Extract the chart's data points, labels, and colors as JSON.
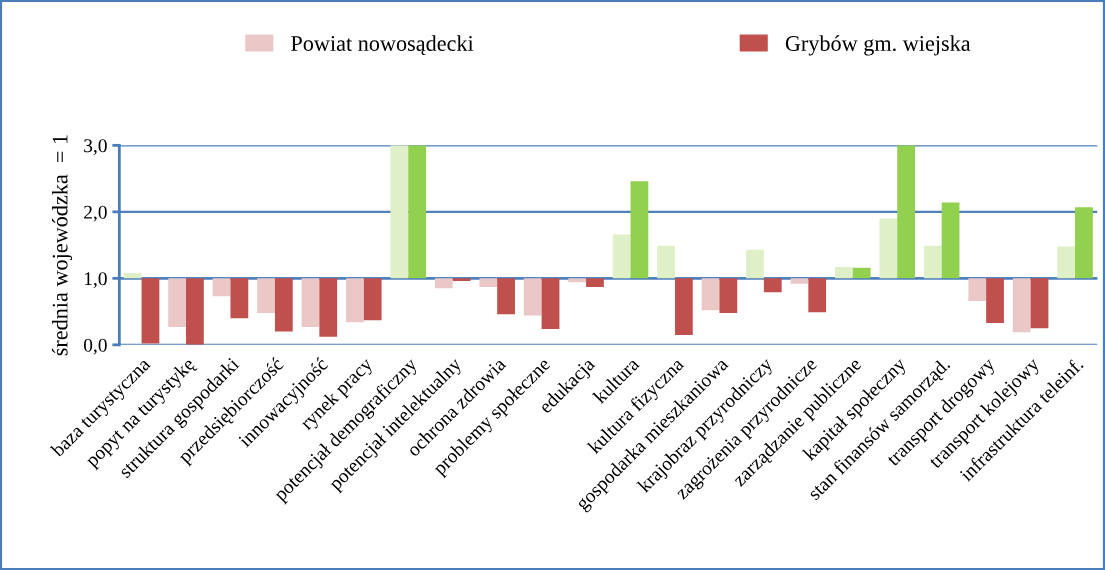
{
  "chart_data": {
    "type": "bar",
    "ylabel": "średnia wojewódzka  = 1",
    "categories": [
      "baza turystyczna",
      "popyt na turystykę",
      "struktura gospodarki",
      "przedsiębiorczość",
      "innowacyjność",
      "rynek pracy",
      "potencjał demograficzny",
      "potencjał intelektualny",
      "ochrona zdrowia",
      "problemy społeczne",
      "edukacja",
      "kultura",
      "kultura fizyczna",
      "gospodarka mieszkaniowa",
      "krajobraz przyrodniczy",
      "zagrożenia przyrodnicze",
      "zarządzanie publiczne",
      "kapitał społeczny",
      "stan finansów samorząd.",
      "transport drogowy",
      "transport kolejowy",
      "infrastruktura teleinf."
    ],
    "series": [
      {
        "base": [
          1,
          1,
          1,
          1,
          1,
          1,
          1,
          1,
          1,
          1,
          1,
          1,
          1,
          1,
          1,
          1,
          1,
          1,
          1,
          1,
          1,
          1
        ],
        "name": "Powiat nowosądecki",
        "color": "#ebc8c8",
        "colors": [
          "#dff0c8",
          "#ebc8c8",
          "#ebc8c8",
          "#ebc8c8",
          "#ebc8c8",
          "#ebc8c8",
          "#dff0c8",
          "#ebc8c8",
          "#ebc8c8",
          "#ebc8c8",
          "#ebc8c8",
          "#dff0c8",
          "#dff0c8",
          "#ebc8c8",
          "#dff0c8",
          "#ebc8c8",
          "#dff0c8",
          "#dff0c8",
          "#dff0c8",
          "#ebc8c8",
          "#ebc8c8",
          "#dff0c8"
        ],
        "values": [
          0.08,
          -0.73,
          -0.27,
          -0.52,
          -0.73,
          -0.66,
          2.0,
          -0.15,
          -0.13,
          -0.56,
          -0.06,
          0.66,
          0.49,
          -0.48,
          0.43,
          -0.08,
          0.17,
          0.9,
          0.49,
          -0.34,
          -0.81,
          0.48
        ]
      },
      {
        "base": [
          1,
          1,
          1,
          1,
          1,
          1,
          1,
          1,
          1,
          1,
          1,
          1,
          1,
          1,
          1,
          1,
          1,
          1,
          1,
          1,
          1,
          1
        ],
        "name": "Grybów gm. wiejska",
        "color": "#c0504d",
        "colors": [
          "#c0504d",
          "#c0504d",
          "#c0504d",
          "#c0504d",
          "#c0504d",
          "#c0504d",
          "#92d050",
          "#c0504d",
          "#c0504d",
          "#c0504d",
          "#c0504d",
          "#92d050",
          "#c0504d",
          "#c0504d",
          "#c0504d",
          "#c0504d",
          "#92d050",
          "#92d050",
          "#92d050",
          "#c0504d",
          "#c0504d",
          "#92d050"
        ],
        "values": [
          -0.98,
          -1.0,
          -0.6,
          -0.8,
          -0.88,
          -0.63,
          2.0,
          -0.04,
          -0.54,
          -0.76,
          -0.13,
          1.46,
          -0.85,
          -0.52,
          -0.21,
          -0.51,
          0.16,
          2.0,
          1.14,
          -0.67,
          -0.75,
          1.07
        ]
      }
    ],
    "ylim": [
      0,
      3
    ],
    "yticks": [
      {
        "value": 0,
        "label": "0,0"
      },
      {
        "value": 1,
        "label": "1,0"
      },
      {
        "value": 2,
        "label": "2,0"
      },
      {
        "value": 3,
        "label": "3,0"
      }
    ],
    "ref_lines": [
      {
        "axis": "y",
        "value": 1,
        "color": "#4a7ebb"
      }
    ],
    "grid": "y",
    "legend": "top"
  }
}
